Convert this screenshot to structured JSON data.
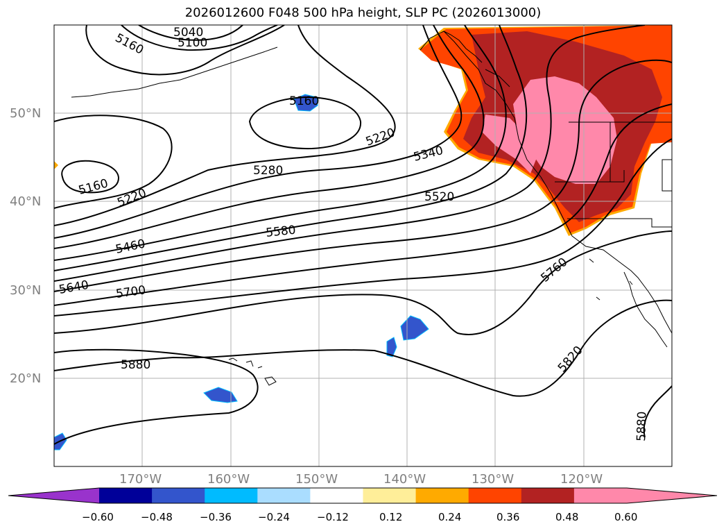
{
  "title": "2026012600 F048 500 hPa height, SLP PC (2026013000)",
  "latitude_labels": [
    "50°N",
    "40°N",
    "30°N",
    "20°N"
  ],
  "longitude_labels": [
    "170°W",
    "160°W",
    "150°W",
    "140°W",
    "130°W",
    "120°W"
  ],
  "contour_labels": [
    "5040",
    "5100",
    "5160",
    "5160",
    "5160",
    "5220",
    "5220",
    "5280",
    "5340",
    "5460",
    "5520",
    "5580",
    "5640",
    "5700",
    "5760",
    "5820",
    "5880",
    "5880"
  ],
  "colorbar": {
    "tick_labels": [
      "−0.60",
      "−0.48",
      "−0.36",
      "−0.24",
      "−0.12",
      "0.12",
      "0.24",
      "0.36",
      "0.48",
      "0.60"
    ],
    "colors": [
      "#9933cc",
      "#000099",
      "#3355cc",
      "#00bbff",
      "#aaddff",
      "#ffffff",
      "#ffee99",
      "#ffaa00",
      "#ff4400",
      "#b22222",
      "#ff88aa",
      "#ff88aa"
    ]
  }
}
